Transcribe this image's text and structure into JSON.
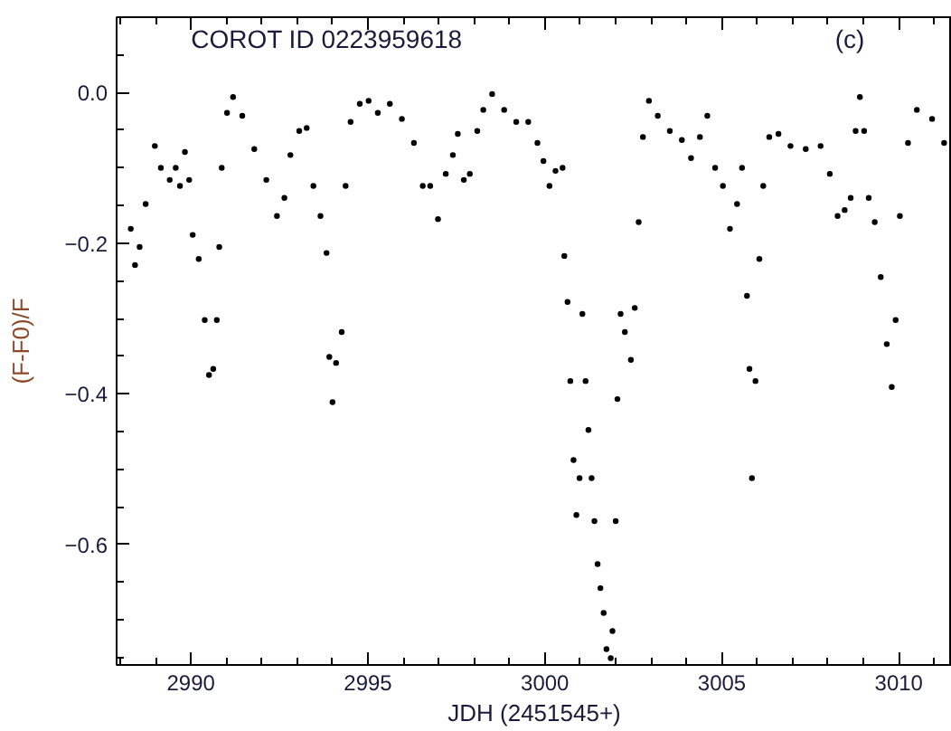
{
  "chart_data": {
    "type": "scatter",
    "title": "COROT ID 0223959618",
    "xlabel": "JDH (2451545+)",
    "ylabel": "(F-F0)/F",
    "annotations": [
      "(c)"
    ],
    "marker": "circle",
    "grid": false,
    "xlim": [
      2987.9,
      3011.5
    ],
    "xticks": [
      2990,
      2995,
      3000,
      3005,
      3010
    ],
    "ylim": [
      -0.76,
      0.1
    ],
    "yticks": [
      {
        "value": 0,
        "label": "0.0"
      },
      -0.2,
      -0.4,
      -0.6
    ],
    "series": [
      {
        "color": "#000000",
        "x": [
          2988.3,
          2988.42,
          2988.55,
          2988.72,
          2988.98,
          2989.15,
          2989.4,
          2989.57,
          2989.69,
          2989.83,
          2989.95,
          2990.05,
          2990.22,
          2990.39,
          2990.51,
          2990.63,
          2990.73,
          2990.8,
          2990.87,
          2991.02,
          2991.19,
          2991.45,
          2991.79,
          2992.13,
          2992.43,
          2992.64,
          2992.81,
          2993.06,
          2993.27,
          2993.46,
          2993.66,
          2993.83,
          2993.91,
          2994.0,
          2994.1,
          2994.26,
          2994.37,
          2994.51,
          2994.77,
          2995.02,
          2995.28,
          2995.62,
          2995.96,
          2996.3,
          2996.55,
          2996.76,
          2996.98,
          2997.2,
          2997.4,
          2997.54,
          2997.71,
          2997.88,
          2998.09,
          2998.26,
          2998.51,
          2998.85,
          2999.19,
          2999.53,
          2999.79,
          2999.96,
          3000.13,
          3000.3,
          3000.5,
          3000.55,
          3000.64,
          3000.72,
          3000.81,
          3000.89,
          3000.98,
          3001.06,
          3001.15,
          3001.23,
          3001.32,
          3001.4,
          3001.49,
          3001.57,
          3001.66,
          3001.74,
          3001.86,
          3001.91,
          3002.0,
          3002.05,
          3002.14,
          3002.26,
          3002.43,
          3002.54,
          3002.65,
          3002.77,
          3002.94,
          3003.19,
          3003.53,
          3003.87,
          3004.13,
          3004.38,
          3004.59,
          3004.81,
          3005.03,
          3005.23,
          3005.43,
          3005.57,
          3005.71,
          3005.78,
          3005.85,
          3005.95,
          3006.06,
          3006.17,
          3006.34,
          3006.6,
          3006.94,
          3007.37,
          3007.79,
          3008.05,
          3008.27,
          3008.47,
          3008.64,
          3008.78,
          3008.9,
          3009.02,
          3009.15,
          3009.32,
          3009.49,
          3009.66,
          3009.8,
          3009.91,
          3010.03,
          3010.26,
          3010.51,
          3010.94,
          3011.28
        ],
        "values": [
          -0.181,
          -0.229,
          -0.205,
          -0.148,
          -0.071,
          -0.1,
          -0.116,
          -0.1,
          -0.124,
          -0.079,
          -0.116,
          -0.189,
          -0.221,
          -0.302,
          -0.375,
          -0.367,
          -0.302,
          -0.205,
          -0.1,
          -0.027,
          -0.006,
          -0.031,
          -0.075,
          -0.116,
          -0.164,
          -0.14,
          -0.083,
          -0.051,
          -0.047,
          -0.124,
          -0.164,
          -0.213,
          -0.351,
          -0.411,
          -0.359,
          -0.318,
          -0.124,
          -0.039,
          -0.015,
          -0.011,
          -0.027,
          -0.015,
          -0.035,
          -0.067,
          -0.124,
          -0.124,
          -0.168,
          -0.108,
          -0.083,
          -0.055,
          -0.116,
          -0.108,
          -0.051,
          -0.023,
          -0.002,
          -0.023,
          -0.039,
          -0.039,
          -0.067,
          -0.091,
          -0.124,
          -0.104,
          -0.1,
          -0.217,
          -0.278,
          -0.383,
          -0.488,
          -0.561,
          -0.512,
          -0.294,
          -0.383,
          -0.448,
          -0.512,
          -0.569,
          -0.626,
          -0.658,
          -0.691,
          -0.739,
          -0.751,
          -0.715,
          -0.569,
          -0.407,
          -0.294,
          -0.318,
          -0.355,
          -0.286,
          -0.172,
          -0.059,
          -0.011,
          -0.031,
          -0.051,
          -0.063,
          -0.087,
          -0.059,
          -0.031,
          -0.1,
          -0.124,
          -0.181,
          -0.148,
          -0.1,
          -0.27,
          -0.367,
          -0.512,
          -0.383,
          -0.221,
          -0.124,
          -0.059,
          -0.055,
          -0.071,
          -0.075,
          -0.071,
          -0.108,
          -0.164,
          -0.156,
          -0.14,
          -0.051,
          -0.006,
          -0.051,
          -0.14,
          -0.172,
          -0.245,
          -0.334,
          -0.391,
          -0.302,
          -0.164,
          -0.067,
          -0.023,
          -0.035,
          -0.067
        ]
      }
    ]
  }
}
